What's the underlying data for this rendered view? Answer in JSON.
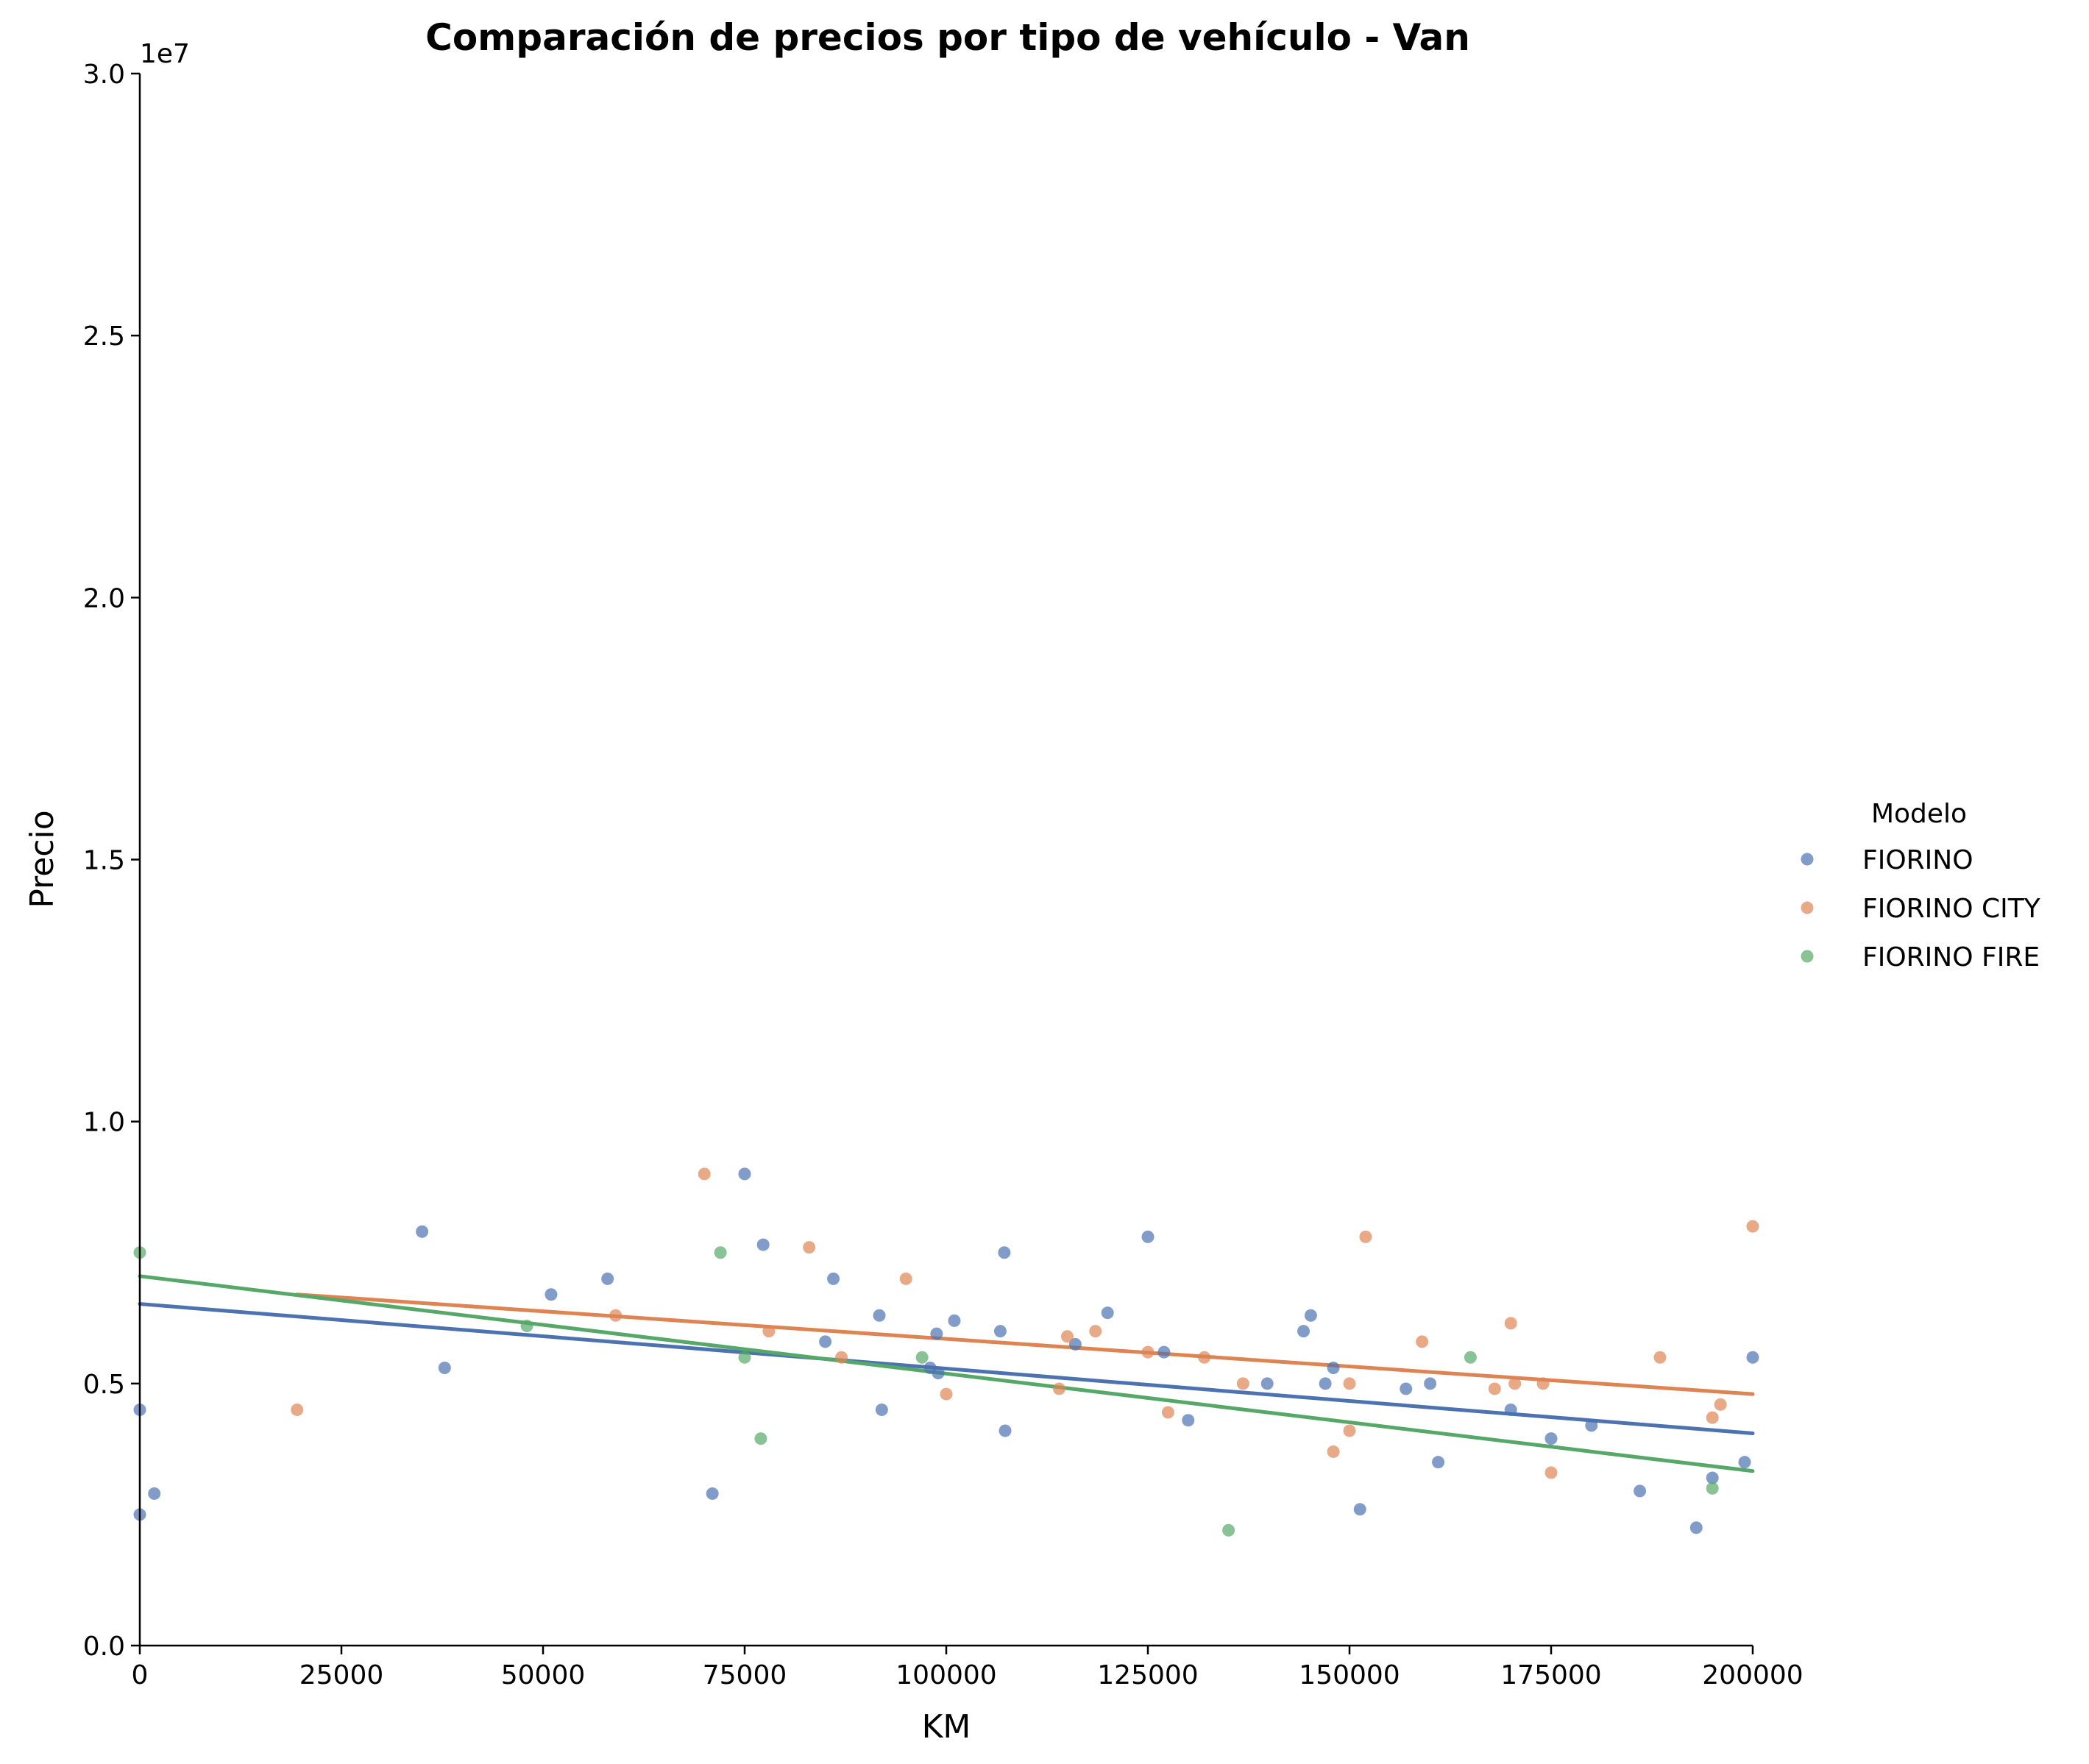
{
  "chart_data": {
    "type": "scatter",
    "title": "Comparación de precios por tipo de vehículo - Van",
    "xlabel": "KM",
    "ylabel": "Precio",
    "y_offset_label": "1e7",
    "xlim": [
      0,
      200000
    ],
    "ylim": [
      0,
      30000000
    ],
    "x_ticks": [
      0,
      25000,
      50000,
      75000,
      100000,
      125000,
      150000,
      175000,
      200000
    ],
    "x_tick_labels": [
      "0",
      "25000",
      "50000",
      "75000",
      "100000",
      "125000",
      "150000",
      "175000",
      "200000"
    ],
    "y_ticks": [
      0,
      5000000,
      10000000,
      15000000,
      20000000,
      25000000,
      30000000
    ],
    "y_tick_labels": [
      "0.0",
      "0.5",
      "1.0",
      "1.5",
      "2.0",
      "2.5",
      "3.0"
    ],
    "grid": false,
    "legend": {
      "title": "Modelo",
      "position": "right"
    },
    "series": [
      {
        "name": "FIORINO",
        "color": "#4c72b0",
        "points": [
          [
            0,
            4500000
          ],
          [
            0,
            2500000
          ],
          [
            1800,
            2900000
          ],
          [
            35000,
            7900000
          ],
          [
            37800,
            5300000
          ],
          [
            51000,
            6700000
          ],
          [
            58000,
            7000000
          ],
          [
            71000,
            2900000
          ],
          [
            75000,
            9000000
          ],
          [
            77300,
            7650000
          ],
          [
            85000,
            5800000
          ],
          [
            86000,
            7000000
          ],
          [
            91700,
            6300000
          ],
          [
            92000,
            4500000
          ],
          [
            98000,
            5300000
          ],
          [
            98800,
            5950000
          ],
          [
            99000,
            5200000
          ],
          [
            101000,
            6200000
          ],
          [
            106700,
            6000000
          ],
          [
            107200,
            7500000
          ],
          [
            107300,
            4100000
          ],
          [
            116000,
            5750000
          ],
          [
            120000,
            6350000
          ],
          [
            125000,
            7800000
          ],
          [
            127000,
            5600000
          ],
          [
            130000,
            4300000
          ],
          [
            139800,
            5000000
          ],
          [
            144300,
            6000000
          ],
          [
            145200,
            6300000
          ],
          [
            147000,
            5000000
          ],
          [
            148000,
            5300000
          ],
          [
            151300,
            2600000
          ],
          [
            157000,
            4900000
          ],
          [
            160000,
            5000000
          ],
          [
            161000,
            3500000
          ],
          [
            170000,
            4500000
          ],
          [
            175000,
            3950000
          ],
          [
            180000,
            4200000
          ],
          [
            186000,
            2950000
          ],
          [
            193000,
            2250000
          ],
          [
            195000,
            3200000
          ],
          [
            199000,
            3500000
          ],
          [
            200000,
            5500000
          ]
        ],
        "trend": {
          "x": [
            0,
            200000
          ],
          "y": [
            6520000,
            4050000
          ]
        }
      },
      {
        "name": "FIORINO CITY",
        "color": "#dd8452",
        "points": [
          [
            19500,
            4500000
          ],
          [
            59000,
            6300000
          ],
          [
            70000,
            9000000
          ],
          [
            78000,
            6000000
          ],
          [
            83000,
            7600000
          ],
          [
            87000,
            5500000
          ],
          [
            95000,
            7000000
          ],
          [
            100000,
            4800000
          ],
          [
            114000,
            4900000
          ],
          [
            115000,
            5900000
          ],
          [
            118500,
            6000000
          ],
          [
            125000,
            5600000
          ],
          [
            127500,
            4450000
          ],
          [
            132000,
            5500000
          ],
          [
            136800,
            5000000
          ],
          [
            148000,
            3700000
          ],
          [
            150000,
            5000000
          ],
          [
            150000,
            4100000
          ],
          [
            152000,
            7800000
          ],
          [
            159000,
            5800000
          ],
          [
            168000,
            4900000
          ],
          [
            170000,
            6150000
          ],
          [
            170500,
            5000000
          ],
          [
            174000,
            5000000
          ],
          [
            175000,
            3300000
          ],
          [
            188500,
            5500000
          ],
          [
            195000,
            4350000
          ],
          [
            196000,
            4600000
          ],
          [
            200000,
            8000000
          ]
        ],
        "trend": {
          "x": [
            19500,
            200000
          ],
          "y": [
            6700000,
            4800000
          ]
        }
      },
      {
        "name": "FIORINO FIRE",
        "color": "#55a868",
        "points": [
          [
            0,
            7500000
          ],
          [
            48000,
            6100000
          ],
          [
            72000,
            7500000
          ],
          [
            75000,
            5500000
          ],
          [
            77000,
            3950000
          ],
          [
            97000,
            5500000
          ],
          [
            135000,
            2200000
          ],
          [
            165000,
            5500000
          ],
          [
            195000,
            3000000
          ]
        ],
        "trend": {
          "x": [
            0,
            200000
          ],
          "y": [
            7050000,
            3330000
          ]
        }
      }
    ]
  }
}
